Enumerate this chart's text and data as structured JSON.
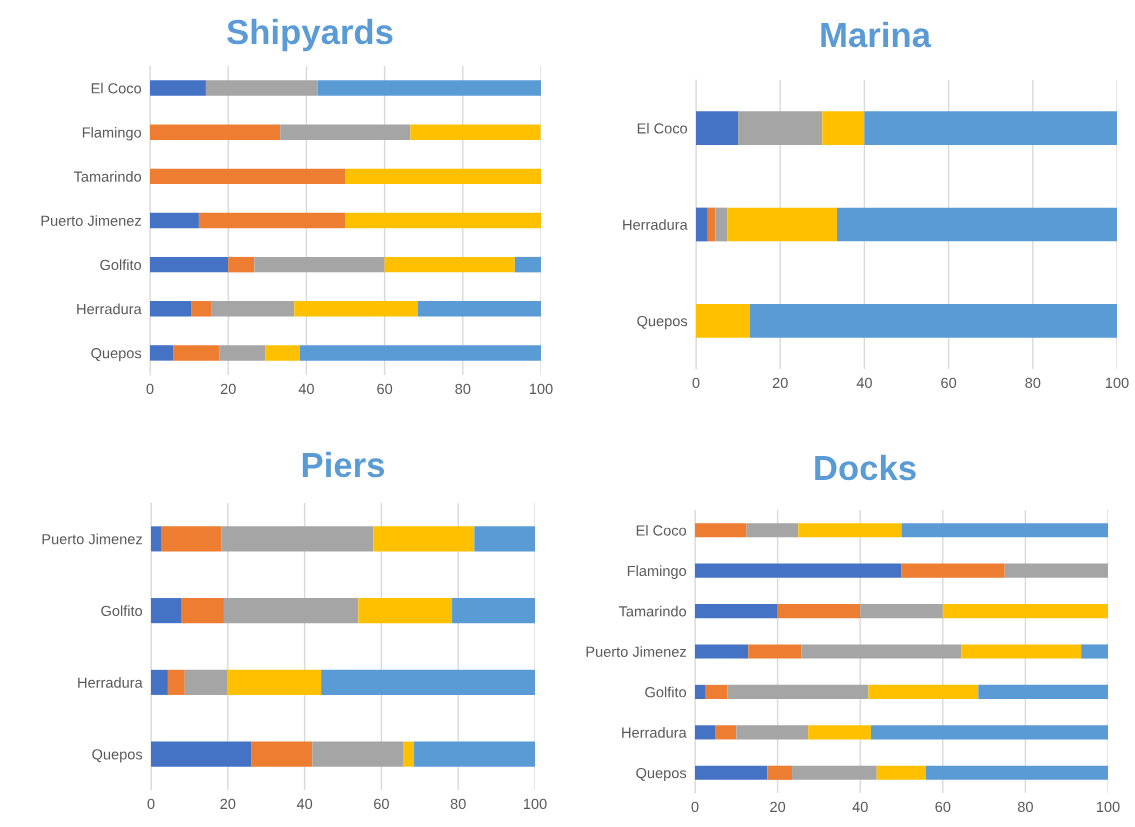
{
  "chart_data": [
    {
      "type": "bar",
      "orientation": "horizontal",
      "stacked": true,
      "title": "Shipyards",
      "categories": [
        "El Coco",
        "Flamingo",
        "Tamarindo",
        "Puerto Jimenez",
        "Golfito",
        "Herradura",
        "Quepos"
      ],
      "series": [
        {
          "color": "#4472c4",
          "values": [
            14.3,
            null,
            null,
            12.5,
            20,
            10.5,
            5.9
          ]
        },
        {
          "color": "#ed7d31",
          "values": [
            null,
            33.3,
            50,
            37.5,
            6.7,
            5.3,
            11.8
          ]
        },
        {
          "color": "#a5a5a5",
          "values": [
            28.6,
            33.3,
            null,
            null,
            33.3,
            21.1,
            11.8
          ]
        },
        {
          "color": "#ffc000",
          "values": [
            null,
            33.3,
            50,
            50,
            33.3,
            31.6,
            8.8
          ]
        },
        {
          "color": "#5b9bd5",
          "values": [
            57.1,
            null,
            null,
            null,
            6.7,
            31.5,
            61.7
          ]
        }
      ],
      "xlim": [
        0,
        100
      ],
      "xticks": [
        0,
        20,
        40,
        60,
        80,
        100
      ],
      "grid": "x"
    },
    {
      "type": "bar",
      "orientation": "horizontal",
      "stacked": true,
      "title": "Marina",
      "categories": [
        "El Coco",
        "Herradura",
        "Quepos"
      ],
      "series": [
        {
          "color": "#4472c4",
          "values": [
            10,
            2.8,
            null
          ]
        },
        {
          "color": "#ed7d31",
          "values": [
            null,
            1.8,
            null
          ]
        },
        {
          "color": "#a5a5a5",
          "values": [
            20,
            2.8,
            null
          ]
        },
        {
          "color": "#ffc000",
          "values": [
            10,
            26.1,
            12.8
          ]
        },
        {
          "color": "#5b9bd5",
          "values": [
            60,
            66.5,
            87.2
          ]
        }
      ],
      "xlim": [
        0,
        100
      ],
      "xticks": [
        0,
        20,
        40,
        60,
        80,
        100
      ],
      "grid": "x"
    },
    {
      "type": "bar",
      "orientation": "horizontal",
      "stacked": true,
      "title": "Piers",
      "categories": [
        "Puerto Jimenez",
        "Golfito",
        "Herradura",
        "Quepos"
      ],
      "series": [
        {
          "color": "#4472c4",
          "values": [
            2.6,
            8.0,
            4.4,
            26.2
          ]
        },
        {
          "color": "#ed7d31",
          "values": [
            15.8,
            11.0,
            4.4,
            15.8
          ]
        },
        {
          "color": "#a5a5a5",
          "values": [
            39.5,
            35.0,
            11.0,
            23.8
          ]
        },
        {
          "color": "#ffc000",
          "values": [
            26.3,
            24.4,
            24.5,
            2.7
          ]
        },
        {
          "color": "#5b9bd5",
          "values": [
            15.8,
            21.6,
            55.7,
            31.5
          ]
        }
      ],
      "xlim": [
        0,
        100
      ],
      "xticks": [
        0,
        20,
        40,
        60,
        80,
        100
      ],
      "grid": "x"
    },
    {
      "type": "bar",
      "orientation": "horizontal",
      "stacked": true,
      "title": "Docks",
      "categories": [
        "El Coco",
        "Flamingo",
        "Tamarindo",
        "Puerto Jimenez",
        "Golfito",
        "Herradura",
        "Quepos"
      ],
      "series": [
        {
          "color": "#4472c4",
          "values": [
            null,
            50,
            20,
            12.9,
            2.6,
            5.0,
            17.5
          ]
        },
        {
          "color": "#ed7d31",
          "values": [
            12.5,
            25,
            20,
            12.9,
            5.3,
            5.0,
            6.0
          ]
        },
        {
          "color": "#a5a5a5",
          "values": [
            12.5,
            25,
            20,
            38.7,
            34.1,
            17.4,
            20.5
          ]
        },
        {
          "color": "#ffc000",
          "values": [
            25,
            null,
            40,
            29.0,
            26.6,
            15.2,
            11.9
          ]
        },
        {
          "color": "#5b9bd5",
          "values": [
            50,
            null,
            null,
            6.5,
            31.4,
            57.4,
            44.1
          ]
        }
      ],
      "xlim": [
        0,
        100
      ],
      "xticks": [
        0,
        20,
        40,
        60,
        80,
        100
      ],
      "grid": "x"
    }
  ]
}
